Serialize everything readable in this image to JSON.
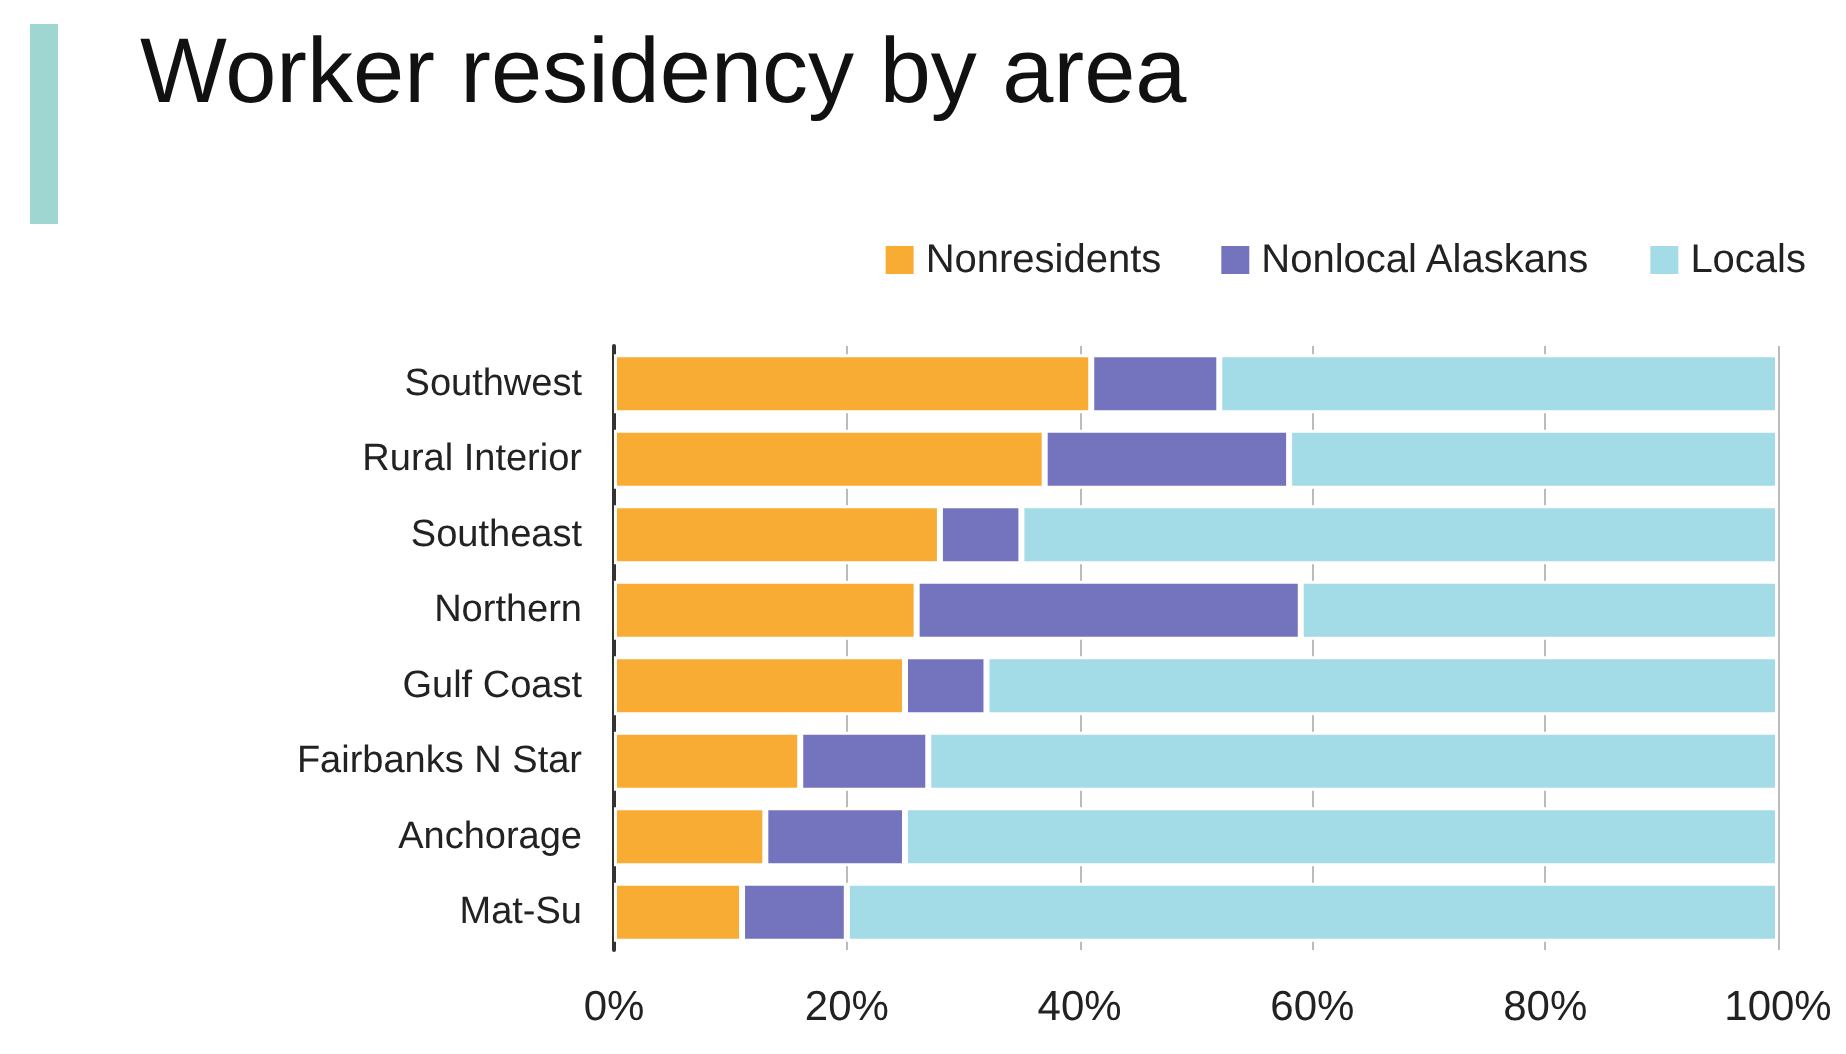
{
  "chart_data": {
    "type": "bar",
    "title": "Worker residency by area",
    "orientation": "horizontal",
    "stacked": true,
    "categories": [
      "Southwest",
      "Rural Interior",
      "Southeast",
      "Northern",
      "Gulf Coast",
      "Fairbanks N Star",
      "Anchorage",
      "Mat-Su"
    ],
    "series": [
      {
        "name": "Nonresidents",
        "color": "#f9ac33",
        "values": [
          41,
          37,
          28,
          26,
          25,
          16,
          13,
          11
        ]
      },
      {
        "name": "Nonlocal Alaskans",
        "color": "#7473bd",
        "values": [
          11,
          21,
          7,
          33,
          7,
          11,
          12,
          9
        ]
      },
      {
        "name": "Locals",
        "color": "#a3dbe6",
        "values": [
          48,
          42,
          65,
          41,
          68,
          73,
          75,
          80
        ]
      }
    ],
    "xlim": [
      0,
      100
    ],
    "xticks": [
      {
        "value": 0,
        "label": "0%"
      },
      {
        "value": 20,
        "label": "20%"
      },
      {
        "value": 40,
        "label": "40%"
      },
      {
        "value": 60,
        "label": "60%"
      },
      {
        "value": 80,
        "label": "80%"
      },
      {
        "value": 100,
        "label": "100%"
      }
    ],
    "grid": "x",
    "legend": "top right"
  }
}
